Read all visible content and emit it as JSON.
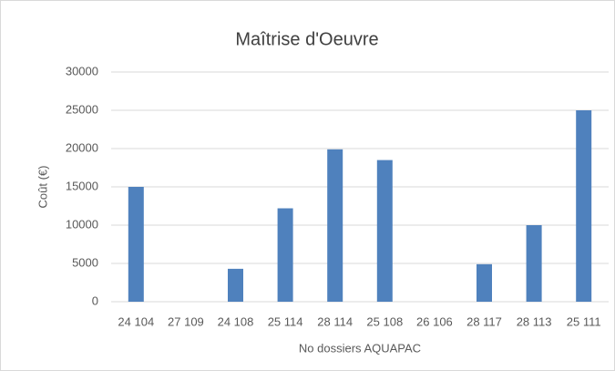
{
  "chart_data": {
    "type": "bar",
    "title": "Maîtrise d'Oeuvre",
    "x_label": "No dossiers AQUAPAC",
    "y_label": "Coût (€)",
    "categories": [
      "24 104",
      "27 109",
      "24 108",
      "25 114",
      "28 114",
      "25 108",
      "26 106",
      "28 117",
      "28 113",
      "25 111"
    ],
    "values": [
      15000,
      0,
      4300,
      12200,
      19900,
      18500,
      0,
      4900,
      10000,
      25000
    ],
    "color": "#4f81bd",
    "ylim": [
      0,
      30000
    ],
    "yticks": [
      0,
      5000,
      10000,
      15000,
      20000,
      25000,
      30000
    ],
    "grid": true
  }
}
